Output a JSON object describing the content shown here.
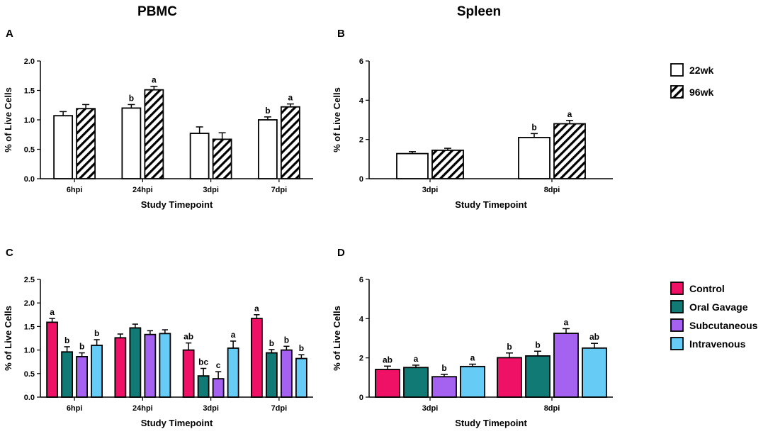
{
  "titles": {
    "left": "PBMC",
    "right": "Spleen"
  },
  "colors": {
    "control": "#EE1166",
    "oral_gavage": "#117A75",
    "subcutaneous": "#A561F0",
    "intravenous": "#66CCF5",
    "white": "#FFFFFF"
  },
  "legend_week": [
    {
      "label": "22wk",
      "pattern": "solid-white"
    },
    {
      "label": "96wk",
      "pattern": "hatched"
    }
  ],
  "legend_route": [
    {
      "label": "Control",
      "color": "#EE1166"
    },
    {
      "label": "Oral Gavage",
      "color": "#117A75"
    },
    {
      "label": "Subcutaneous",
      "color": "#A561F0"
    },
    {
      "label": "Intravenous",
      "color": "#66CCF5"
    }
  ],
  "chart_data": [
    {
      "panel": "A",
      "type": "bar",
      "column": "PBMC",
      "categories": [
        "6hpi",
        "24hpi",
        "3dpi",
        "7dpi"
      ],
      "xlabel": "Study Timepoint",
      "ylabel": "% of Live Cells",
      "ylim": [
        0,
        2.0
      ],
      "yticks": [
        "0.0",
        "0.5",
        "1.0",
        "1.5",
        "2.0"
      ],
      "series": [
        {
          "name": "22wk",
          "values": [
            1.07,
            1.2,
            0.77,
            1.0
          ],
          "errors": [
            0.07,
            0.06,
            0.11,
            0.05
          ],
          "labels": [
            "",
            "b",
            "",
            "b"
          ]
        },
        {
          "name": "96wk",
          "values": [
            1.19,
            1.51,
            0.67,
            1.22
          ],
          "errors": [
            0.07,
            0.06,
            0.11,
            0.05
          ],
          "labels": [
            "",
            "a",
            "",
            "a"
          ]
        }
      ]
    },
    {
      "panel": "B",
      "type": "bar",
      "column": "Spleen",
      "categories": [
        "3dpi",
        "8dpi"
      ],
      "xlabel": "Study Timepoint",
      "ylabel": "% of Live Cells",
      "ylim": [
        0,
        6
      ],
      "yticks": [
        "0",
        "2",
        "4",
        "6"
      ],
      "series": [
        {
          "name": "22wk",
          "values": [
            1.28,
            2.1
          ],
          "errors": [
            0.1,
            0.2
          ],
          "labels": [
            "",
            "b"
          ]
        },
        {
          "name": "96wk",
          "values": [
            1.45,
            2.8
          ],
          "errors": [
            0.1,
            0.17
          ],
          "labels": [
            "",
            "a"
          ]
        }
      ]
    },
    {
      "panel": "C",
      "type": "bar",
      "column": "PBMC",
      "categories": [
        "6hpi",
        "24hpi",
        "3dpi",
        "7dpi"
      ],
      "xlabel": "Study Timepoint",
      "ylabel": "% of Live Cells",
      "ylim": [
        0,
        2.5
      ],
      "yticks": [
        "0.0",
        "0.5",
        "1.0",
        "1.5",
        "2.0",
        "2.5"
      ],
      "series": [
        {
          "name": "Control",
          "values": [
            1.59,
            1.26,
            1.0,
            1.67
          ],
          "errors": [
            0.08,
            0.08,
            0.15,
            0.08
          ],
          "labels": [
            "a",
            "",
            "ab",
            "a"
          ]
        },
        {
          "name": "Oral Gavage",
          "values": [
            0.96,
            1.47,
            0.45,
            0.94
          ],
          "errors": [
            0.11,
            0.08,
            0.16,
            0.07
          ],
          "labels": [
            "b",
            "",
            "bc",
            "b"
          ]
        },
        {
          "name": "Subcutaneous",
          "values": [
            0.86,
            1.33,
            0.39,
            1.0
          ],
          "errors": [
            0.08,
            0.08,
            0.15,
            0.08
          ],
          "labels": [
            "b",
            "",
            "c",
            "b"
          ]
        },
        {
          "name": "Intravenous",
          "values": [
            1.1,
            1.35,
            1.04,
            0.82
          ],
          "errors": [
            0.12,
            0.08,
            0.15,
            0.08
          ],
          "labels": [
            "b",
            "",
            "a",
            "b"
          ]
        }
      ]
    },
    {
      "panel": "D",
      "type": "bar",
      "column": "Spleen",
      "categories": [
        "3dpi",
        "8dpi"
      ],
      "xlabel": "Study Timepoint",
      "ylabel": "% of Live Cells",
      "ylim": [
        0,
        6
      ],
      "yticks": [
        "0",
        "2",
        "4",
        "6"
      ],
      "series": [
        {
          "name": "Control",
          "values": [
            1.41,
            2.01
          ],
          "errors": [
            0.17,
            0.24
          ],
          "labels": [
            "ab",
            "b"
          ]
        },
        {
          "name": "Oral Gavage",
          "values": [
            1.51,
            2.1
          ],
          "errors": [
            0.12,
            0.24
          ],
          "labels": [
            "a",
            "b"
          ]
        },
        {
          "name": "Subcutaneous",
          "values": [
            1.04,
            3.25
          ],
          "errors": [
            0.12,
            0.24
          ],
          "labels": [
            "b",
            "a"
          ]
        },
        {
          "name": "Intravenous",
          "values": [
            1.56,
            2.5
          ],
          "errors": [
            0.12,
            0.24
          ],
          "labels": [
            "a",
            "ab"
          ]
        }
      ]
    }
  ]
}
